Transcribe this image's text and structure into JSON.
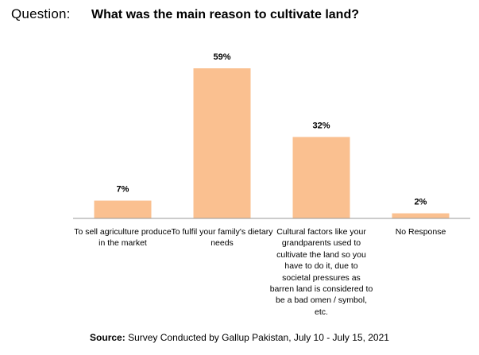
{
  "question_label": "Question:",
  "question_text": "What was the main reason to cultivate land?",
  "chart_data": {
    "type": "bar",
    "categories": [
      "To sell agriculture produce in the market",
      "To fulfil your family's dietary needs",
      "Cultural factors like your grandparents used to cultivate the land so you have to do it, due to societal pressures as barren land is considered to be a bad omen / symbol, etc.",
      "No Response"
    ],
    "values": [
      7,
      59,
      32,
      2
    ],
    "value_labels": [
      "7%",
      "59%",
      "32%",
      "2%"
    ],
    "value_unit": "%",
    "ylim": [
      0,
      59
    ],
    "bar_color": "#FAC090",
    "axis_color": "#999999",
    "grid": false,
    "legend": false
  },
  "source_label": "Source:",
  "source_text": "Survey Conducted by Gallup Pakistan, July 10 - July 15, 2021"
}
